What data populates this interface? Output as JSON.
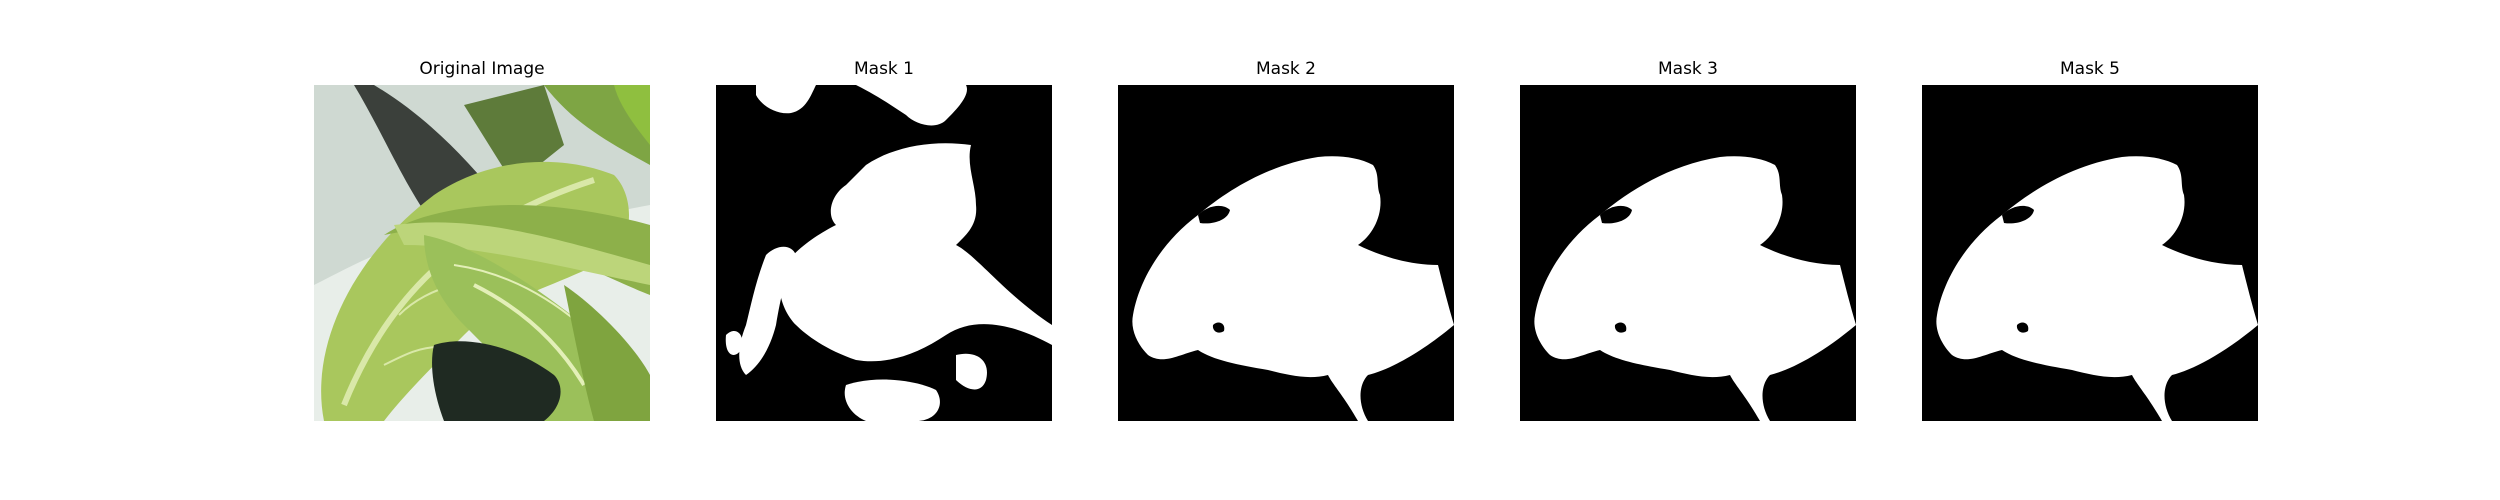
{
  "figure": {
    "panels": [
      {
        "title": "Original Image",
        "kind": "photo"
      },
      {
        "title": "Mask 1",
        "kind": "mask"
      },
      {
        "title": "Mask 2",
        "kind": "mask"
      },
      {
        "title": "Mask 3",
        "kind": "mask"
      },
      {
        "title": "Mask 5",
        "kind": "mask"
      }
    ],
    "colors": {
      "background": "#ffffff",
      "mask_background": "#000000",
      "mask_foreground": "#ffffff",
      "leaf_light": "#b7cf6a",
      "leaf_mid": "#8db04a",
      "leaf_dark": "#5f8a2c",
      "pot": "#e6ece6",
      "shadow": "#2b2f2b"
    }
  }
}
